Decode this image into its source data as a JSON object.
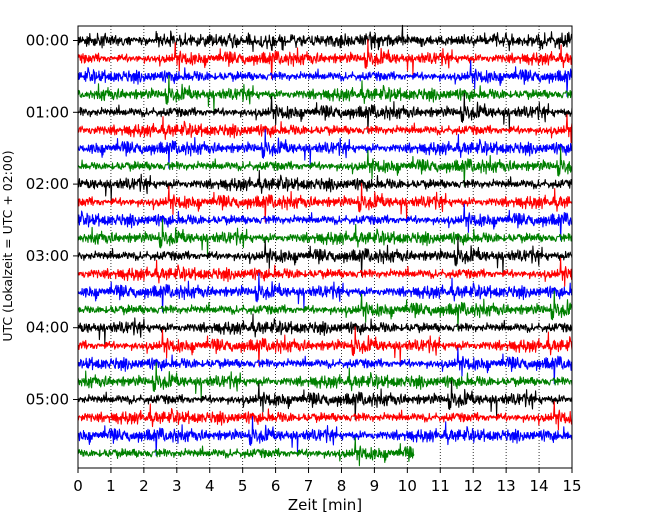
{
  "chart_data": {
    "type": "line",
    "title": "",
    "xlabel": "Zeit  [min]",
    "ylabel": "UTC (Lokalzeit = UTC + 02:00)",
    "xlim": [
      0,
      15
    ],
    "x_ticks": [
      "0",
      "1",
      "2",
      "3",
      "4",
      "5",
      "6",
      "7",
      "8",
      "9",
      "10",
      "11",
      "12",
      "13",
      "14",
      "15"
    ],
    "y_ticks": [
      "00:00",
      "01:00",
      "02:00",
      "03:00",
      "04:00",
      "05:00"
    ],
    "grid": true,
    "legend": "none",
    "row_interval_minutes": 15,
    "rows_total": 24,
    "start_time": "00:00",
    "last_row_end_minute": 10.2,
    "series": [
      {
        "color": "#000000"
      },
      {
        "color": "#ff0000"
      },
      {
        "color": "#0000ff"
      },
      {
        "color": "#008000"
      }
    ]
  }
}
